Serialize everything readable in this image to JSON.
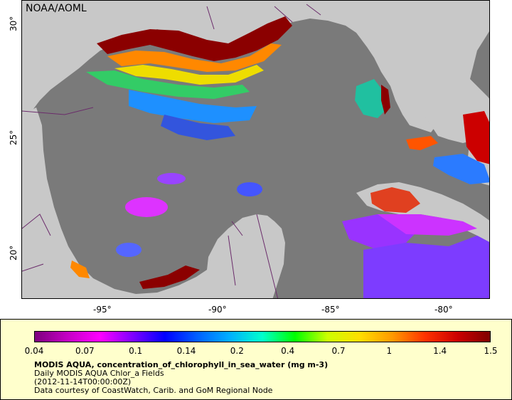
{
  "map": {
    "source_label": "NOAA/AOML",
    "lat_labels": [
      "30°",
      "25°",
      "20°"
    ],
    "lon_labels": [
      "-95°",
      "-90°",
      "-85°",
      "-80°"
    ],
    "colors": {
      "ocean": "#7a7a7a",
      "land": "#c8c8c8",
      "border": "#6b2c6b",
      "high": "#8b0000"
    }
  },
  "legend": {
    "colorbar_ticks": [
      "0.04",
      "0.07",
      "0.1",
      "0.14",
      "0.2",
      "0.4",
      "0.7",
      "1",
      "1.4",
      "1.5"
    ],
    "title": "MODIS AQUA, concentration_of_chlorophyll_in_sea_water (mg m-3)",
    "line1": "Daily MODIS AQUA Chlor_a Fields",
    "line2": "(2012-11-14T00:00:00Z)",
    "line3": "Data courtesy of CoastWatch, Carib. and GoM Regional Node",
    "palette": [
      "#7e007e",
      "#c400c4",
      "#ff00ff",
      "#8000ff",
      "#0000ff",
      "#0060ff",
      "#00b0ff",
      "#00ffcc",
      "#00ff00",
      "#ccff00",
      "#ffdd00",
      "#ff9900",
      "#ff3300",
      "#cc0000",
      "#7f0000"
    ]
  }
}
